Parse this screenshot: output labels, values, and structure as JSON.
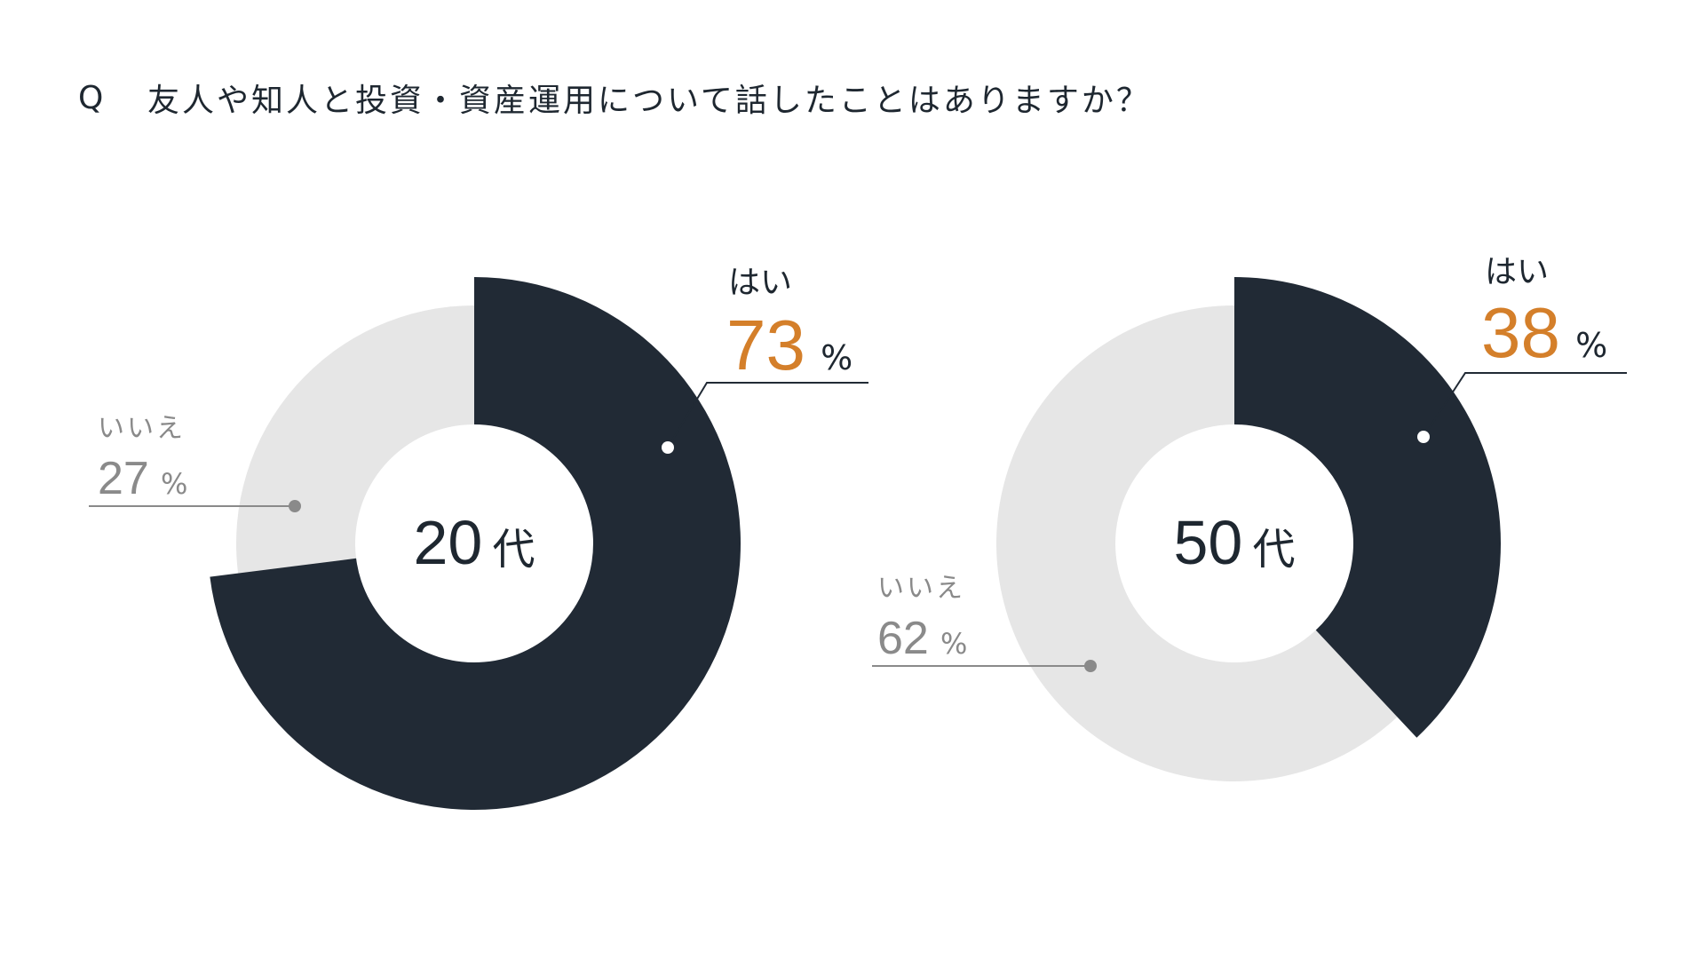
{
  "question": {
    "mark": "Q",
    "text": "友人や知人と投資・資産運用について話したことはありますか？"
  },
  "colors": {
    "yes": "#212a35",
    "no": "#e6e6e6",
    "yes_pct": "#d47f2a",
    "no_text": "#8a8a8a",
    "leader_yes": "#212a35",
    "leader_no": "#8a8a8a"
  },
  "chart_data": [
    {
      "type": "pie",
      "center_label": {
        "number": "20",
        "suffix": "代"
      },
      "slices": [
        {
          "label": "はい",
          "value": 73,
          "unit": "%"
        },
        {
          "label": "いいえ",
          "value": 27,
          "unit": "%"
        }
      ]
    },
    {
      "type": "pie",
      "center_label": {
        "number": "50",
        "suffix": "代"
      },
      "slices": [
        {
          "label": "はい",
          "value": 38,
          "unit": "%"
        },
        {
          "label": "いいえ",
          "value": 62,
          "unit": "%"
        }
      ]
    }
  ]
}
